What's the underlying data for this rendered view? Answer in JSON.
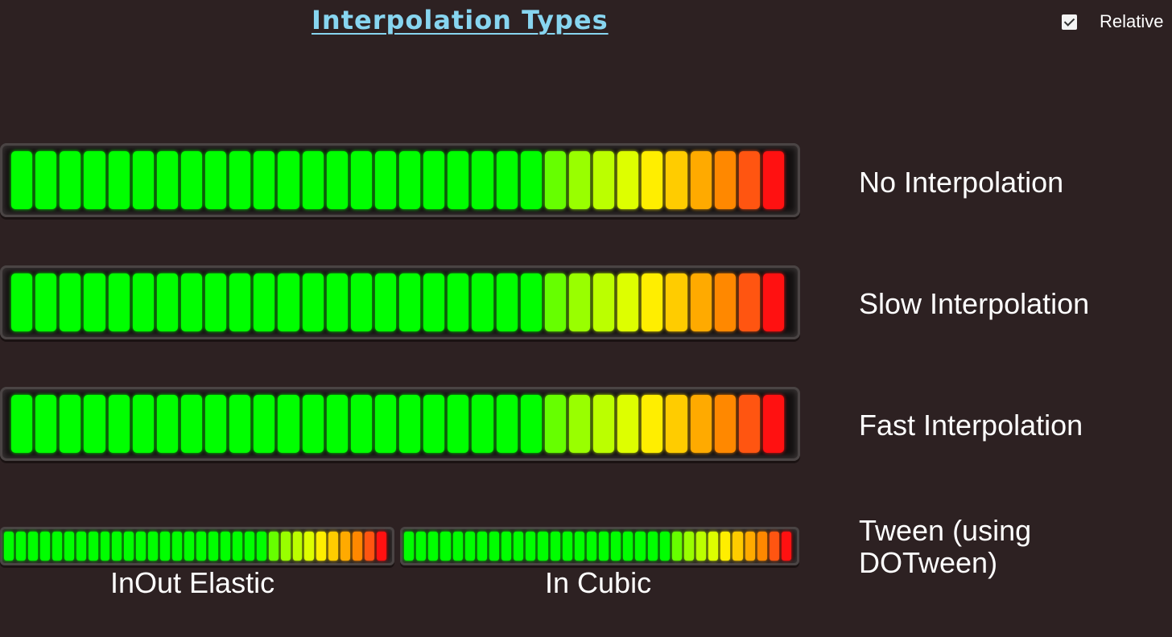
{
  "title": "Interpolation Types",
  "relative_toggle": {
    "label": "Relative",
    "checked": true
  },
  "segment_colors": [
    "#00ff00",
    "#00ff00",
    "#00ff00",
    "#00ff00",
    "#00ff00",
    "#00ff00",
    "#00ff00",
    "#00ff00",
    "#00ff00",
    "#00ff00",
    "#00ff00",
    "#00ff00",
    "#00ff00",
    "#00ff00",
    "#00ff00",
    "#00ff00",
    "#00ff00",
    "#00ff00",
    "#00ff00",
    "#00ff00",
    "#00ff00",
    "#00ff00",
    "#66ff00",
    "#99ff00",
    "#bbff00",
    "#ddff00",
    "#ffee00",
    "#ffcc00",
    "#ffaa00",
    "#ff8800",
    "#ff5511",
    "#ff1111"
  ],
  "meters": [
    {
      "label": "No Interpolation",
      "level": 1.0
    },
    {
      "label": "Slow Interpolation",
      "level": 1.0
    },
    {
      "label": "Fast Interpolation",
      "level": 1.0
    }
  ],
  "tween": {
    "label": "Tween (using DOTween)",
    "meters": [
      {
        "label": "InOut Elastic",
        "level": 1.0
      },
      {
        "label": "In Cubic",
        "level": 1.0
      }
    ]
  }
}
